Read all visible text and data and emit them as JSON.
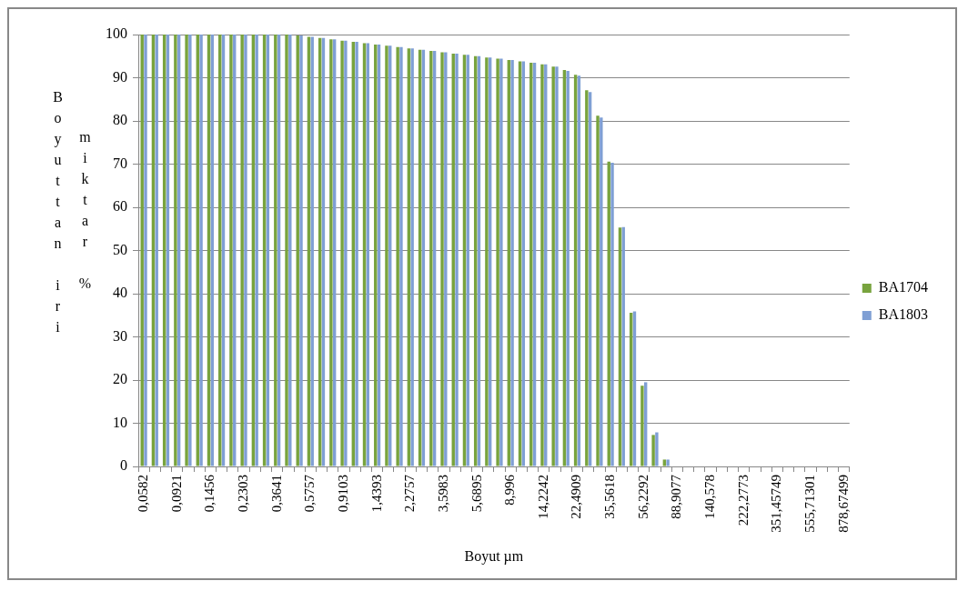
{
  "chart_data": {
    "type": "bar",
    "xlabel": "Boyut µm",
    "ylabel": "Boyuttan iri miktar %",
    "categories": [
      "0,0582",
      null,
      null,
      "0,0921",
      null,
      null,
      "0,1456",
      null,
      null,
      "0,2303",
      null,
      null,
      "0,3641",
      null,
      null,
      "0,5757",
      null,
      null,
      "0,9103",
      null,
      null,
      "1,4393",
      null,
      null,
      "2,2757",
      null,
      null,
      "3,5983",
      null,
      null,
      "5,6895",
      null,
      null,
      "8,996",
      null,
      null,
      "14,2242",
      null,
      null,
      "22,4909",
      null,
      null,
      "35,5618",
      null,
      null,
      "56,2292",
      null,
      null,
      "88,9077",
      null,
      null,
      "140,578",
      null,
      null,
      "222,2773",
      null,
      null,
      "351,45749",
      null,
      null,
      "555,71301",
      null,
      null,
      "878,67499"
    ],
    "series": [
      {
        "name": "BA1704",
        "color": "#78a33e",
        "values": [
          100,
          100,
          100,
          100,
          100,
          100,
          100,
          100,
          100,
          100,
          100,
          100,
          100,
          100,
          99.8,
          99.5,
          99.2,
          98.9,
          98.6,
          98.3,
          98.0,
          97.7,
          97.4,
          97.1,
          96.8,
          96.5,
          96.2,
          95.9,
          95.6,
          95.3,
          95.0,
          94.7,
          94.4,
          94.1,
          93.8,
          93.5,
          93.1,
          92.6,
          91.8,
          90.7,
          87.1,
          81.2,
          70.6,
          55.3,
          35.6,
          18.7,
          7.3,
          1.6,
          0,
          0,
          0,
          0,
          0,
          0,
          0,
          0,
          0,
          0,
          0,
          0,
          0,
          0,
          0,
          0
        ]
      },
      {
        "name": "BA1803",
        "color": "#7f9fd4",
        "values": [
          100,
          100,
          100,
          100,
          100,
          100,
          100,
          100,
          100,
          100,
          100,
          100,
          100,
          100,
          99.8,
          99.5,
          99.2,
          98.9,
          98.6,
          98.3,
          98.0,
          97.7,
          97.4,
          97.1,
          96.8,
          96.5,
          96.2,
          95.9,
          95.6,
          95.3,
          95.0,
          94.7,
          94.4,
          94.1,
          93.8,
          93.5,
          93.1,
          92.6,
          91.6,
          90.5,
          86.7,
          80.8,
          70.3,
          55.4,
          35.9,
          19.5,
          7.9,
          1.6,
          0,
          0,
          0,
          0,
          0,
          0,
          0,
          0,
          0,
          0,
          0,
          0,
          0,
          0,
          0,
          0
        ]
      }
    ],
    "ylim": [
      0,
      100
    ],
    "yticks": [
      0,
      10,
      20,
      30,
      40,
      50,
      60,
      70,
      80,
      90,
      100
    ],
    "grid": "y",
    "legend": "right"
  }
}
